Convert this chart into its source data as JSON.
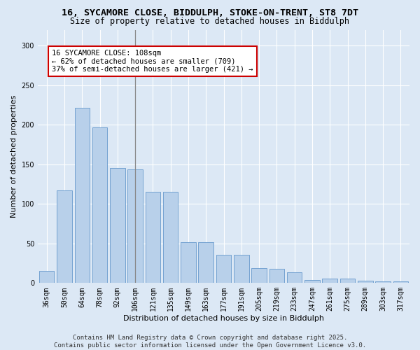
{
  "title_line1": "16, SYCAMORE CLOSE, BIDDULPH, STOKE-ON-TRENT, ST8 7DT",
  "title_line2": "Size of property relative to detached houses in Biddulph",
  "xlabel": "Distribution of detached houses by size in Biddulph",
  "ylabel": "Number of detached properties",
  "categories": [
    "36sqm",
    "50sqm",
    "64sqm",
    "78sqm",
    "92sqm",
    "106sqm",
    "121sqm",
    "135sqm",
    "149sqm",
    "163sqm",
    "177sqm",
    "191sqm",
    "205sqm",
    "219sqm",
    "233sqm",
    "247sqm",
    "261sqm",
    "275sqm",
    "289sqm",
    "303sqm",
    "317sqm"
  ],
  "values": [
    15,
    117,
    221,
    197,
    145,
    144,
    115,
    115,
    52,
    52,
    36,
    36,
    19,
    18,
    14,
    4,
    6,
    6,
    3,
    2,
    2
  ],
  "bar_color": "#b8d0ea",
  "bar_edge_color": "#6699cc",
  "annotation_text": "16 SYCAMORE CLOSE: 108sqm\n← 62% of detached houses are smaller (709)\n37% of semi-detached houses are larger (421) →",
  "annotation_box_facecolor": "#ffffff",
  "annotation_box_edgecolor": "#cc0000",
  "vline_x": 5,
  "vline_color": "#888888",
  "fig_facecolor": "#dce8f5",
  "plot_facecolor": "#dce8f5",
  "ylim": [
    0,
    320
  ],
  "yticks": [
    0,
    50,
    100,
    150,
    200,
    250,
    300
  ],
  "footer_text": "Contains HM Land Registry data © Crown copyright and database right 2025.\nContains public sector information licensed under the Open Government Licence v3.0.",
  "title_fontsize": 9.5,
  "subtitle_fontsize": 8.5,
  "axis_label_fontsize": 8,
  "tick_fontsize": 7,
  "annotation_fontsize": 7.5,
  "footer_fontsize": 6.5
}
